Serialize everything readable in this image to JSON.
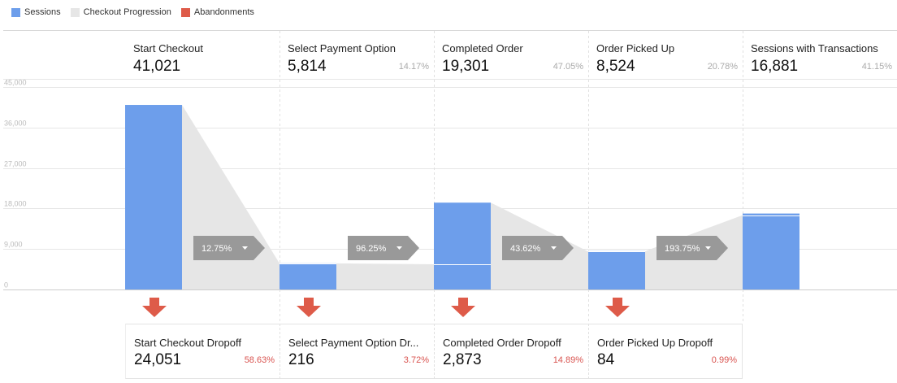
{
  "legend": [
    {
      "label": "Sessions",
      "color": "#6d9eeb"
    },
    {
      "label": "Checkout Progression",
      "color": "#e6e6e6"
    },
    {
      "label": "Abandonments",
      "color": "#de5b49"
    }
  ],
  "steps": [
    {
      "name": "Start Checkout",
      "value": "41,021",
      "pct": ""
    },
    {
      "name": "Select Payment Option",
      "value": "5,814",
      "pct": "14.17%"
    },
    {
      "name": "Completed Order",
      "value": "19,301",
      "pct": "47.05%"
    },
    {
      "name": "Order Picked Up",
      "value": "8,524",
      "pct": "20.78%"
    },
    {
      "name": "Sessions with Transactions",
      "value": "16,881",
      "pct": "41.15%"
    }
  ],
  "dropoffs": [
    {
      "name": "Start Checkout Dropoff",
      "value": "24,051",
      "pct": "58.63%"
    },
    {
      "name": "Select Payment Option Dr...",
      "value": "216",
      "pct": "3.72%"
    },
    {
      "name": "Completed Order Dropoff",
      "value": "2,873",
      "pct": "14.89%"
    },
    {
      "name": "Order Picked Up Dropoff",
      "value": "84",
      "pct": "0.99%"
    }
  ],
  "chart_data": {
    "type": "bar",
    "categories": [
      "Start Checkout",
      "Select Payment Option",
      "Completed Order",
      "Order Picked Up",
      "Sessions with Transactions"
    ],
    "values": [
      41021,
      5814,
      19301,
      8524,
      16881
    ],
    "progression_values": [
      5814,
      5598,
      8421,
      16518
    ],
    "conversion_labels": [
      "12.75%",
      "96.25%",
      "43.62%",
      "193.75%"
    ],
    "ylim": [
      0,
      45000
    ],
    "yticks": [
      0,
      9000,
      18000,
      27000,
      36000,
      45000
    ],
    "ytick_labels": [
      "0",
      "9,000",
      "18,000",
      "27,000",
      "36,000",
      "45,000"
    ],
    "grid": true,
    "legend_position": "top-left",
    "colors": {
      "sessions": "#6d9eeb",
      "progression": "#e6e6e6",
      "abandonments": "#de5b49",
      "conversion_tag": "#999999"
    }
  }
}
